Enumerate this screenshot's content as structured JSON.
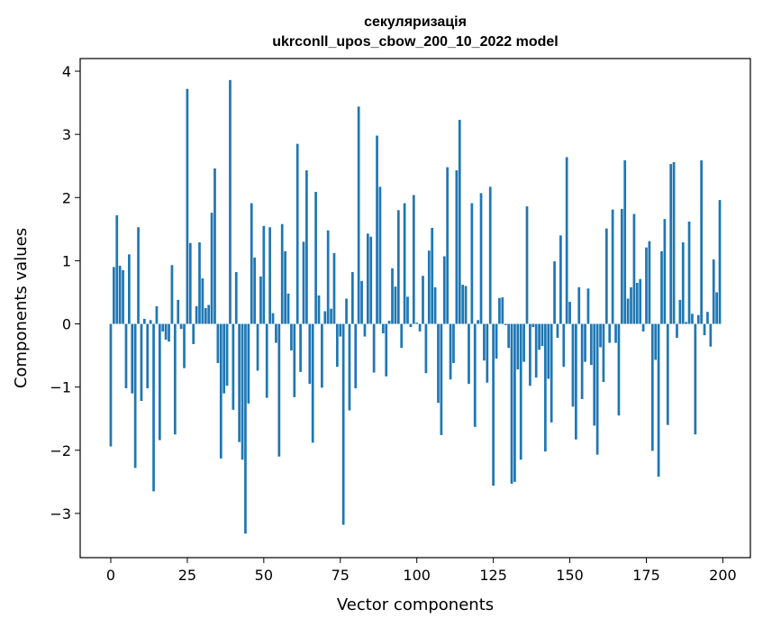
{
  "chart_data": {
    "type": "bar",
    "title_lines": [
      "секуляризація",
      "ukrconll_upos_cbow_200_10_2022 model"
    ],
    "xlabel": "Vector components",
    "ylabel": "Components values",
    "xlim": [
      -10,
      209
    ],
    "ylim": [
      -3.7,
      4.2
    ],
    "xticks": [
      0,
      25,
      50,
      75,
      100,
      125,
      150,
      175,
      200
    ],
    "yticks": [
      -3,
      -2,
      -1,
      0,
      1,
      2,
      3,
      4
    ],
    "ytick_labels": [
      "−3",
      "−2",
      "−1",
      "0",
      "1",
      "2",
      "3",
      "4"
    ],
    "grid": false,
    "bar_color": "#1f77b4",
    "x": [
      0,
      1,
      2,
      3,
      4,
      5,
      6,
      7,
      8,
      9,
      10,
      11,
      12,
      13,
      14,
      15,
      16,
      17,
      18,
      19,
      20,
      21,
      22,
      23,
      24,
      25,
      26,
      27,
      28,
      29,
      30,
      31,
      32,
      33,
      34,
      35,
      36,
      37,
      38,
      39,
      40,
      41,
      42,
      43,
      44,
      45,
      46,
      47,
      48,
      49,
      50,
      51,
      52,
      53,
      54,
      55,
      56,
      57,
      58,
      59,
      60,
      61,
      62,
      63,
      64,
      65,
      66,
      67,
      68,
      69,
      70,
      71,
      72,
      73,
      74,
      75,
      76,
      77,
      78,
      79,
      80,
      81,
      82,
      83,
      84,
      85,
      86,
      87,
      88,
      89,
      90,
      91,
      92,
      93,
      94,
      95,
      96,
      97,
      98,
      99,
      100,
      101,
      102,
      103,
      104,
      105,
      106,
      107,
      108,
      109,
      110,
      111,
      112,
      113,
      114,
      115,
      116,
      117,
      118,
      119,
      120,
      121,
      122,
      123,
      124,
      125,
      126,
      127,
      128,
      129,
      130,
      131,
      132,
      133,
      134,
      135,
      136,
      137,
      138,
      139,
      140,
      141,
      142,
      143,
      144,
      145,
      146,
      147,
      148,
      149,
      150,
      151,
      152,
      153,
      154,
      155,
      156,
      157,
      158,
      159,
      160,
      161,
      162,
      163,
      164,
      165,
      166,
      167,
      168,
      169,
      170,
      171,
      172,
      173,
      174,
      175,
      176,
      177,
      178,
      179,
      180,
      181,
      182,
      183,
      184,
      185,
      186,
      187,
      188,
      189,
      190,
      191,
      192,
      193,
      194,
      195,
      196,
      197,
      198,
      199
    ],
    "values": [
      -1.94,
      0.9,
      1.72,
      0.92,
      0.85,
      -1.02,
      1.1,
      -1.1,
      -2.28,
      1.53,
      -1.22,
      0.08,
      -1.02,
      0.06,
      -2.65,
      0.28,
      -1.84,
      -0.12,
      -0.25,
      -0.28,
      0.93,
      -1.75,
      0.38,
      -0.08,
      -0.7,
      3.72,
      1.28,
      -0.32,
      0.28,
      1.29,
      0.72,
      0.25,
      0.3,
      1.76,
      2.46,
      -0.62,
      -2.13,
      -1.1,
      -0.98,
      3.86,
      -1.36,
      0.82,
      -1.87,
      -2.15,
      -3.32,
      -1.26,
      1.91,
      1.05,
      -0.74,
      0.75,
      1.55,
      -1.17,
      1.53,
      0.17,
      -0.3,
      -2.1,
      1.58,
      1.15,
      0.48,
      -0.42,
      -1.16,
      2.85,
      -0.76,
      1.3,
      2.43,
      -0.95,
      -1.88,
      2.09,
      0.45,
      -1.01,
      0.2,
      1.48,
      0.24,
      1.12,
      -0.68,
      -0.2,
      -3.18,
      0.4,
      -1.37,
      0.82,
      -1.02,
      3.44,
      0.68,
      -0.2,
      1.43,
      1.38,
      -0.77,
      2.98,
      2.17,
      -0.15,
      -0.83,
      0.05,
      0.88,
      0.59,
      1.8,
      -0.38,
      1.91,
      0.43,
      -0.05,
      2.04,
      0.02,
      -0.12,
      0.76,
      -0.78,
      1.16,
      1.52,
      0.58,
      -1.25,
      -1.76,
      1.07,
      2.48,
      -0.88,
      -0.62,
      2.43,
      3.23,
      0.62,
      0.6,
      -0.95,
      1.91,
      -1.63,
      0.06,
      2.07,
      -0.58,
      -0.93,
      2.17,
      -2.56,
      -0.55,
      0.41,
      0.42,
      -0.02,
      -0.38,
      -2.53,
      -2.5,
      -0.72,
      -2.15,
      -0.6,
      1.86,
      -0.98,
      -0.05,
      -0.85,
      -0.41,
      -0.35,
      -2.02,
      -0.87,
      -1.56,
      0.99,
      -0.22,
      1.4,
      -0.68,
      2.64,
      0.35,
      -1.31,
      -1.83,
      0.58,
      -1.19,
      -0.6,
      0.56,
      -0.65,
      -1.61,
      -2.07,
      -0.37,
      -0.92,
      1.51,
      -0.3,
      1.81,
      -0.3,
      -1.45,
      1.82,
      2.59,
      0.4,
      0.58,
      1.74,
      0.65,
      0.71,
      -0.12,
      1.21,
      1.31,
      -2.01,
      -0.57,
      -2.42,
      1.15,
      1.66,
      -1.6,
      2.53,
      2.56,
      -0.22,
      0.38,
      1.29,
      0.03,
      1.62,
      0.16,
      -1.75,
      0.14,
      2.59,
      -0.18,
      0.19,
      -0.36,
      1.02,
      0.5,
      1.96
    ]
  }
}
